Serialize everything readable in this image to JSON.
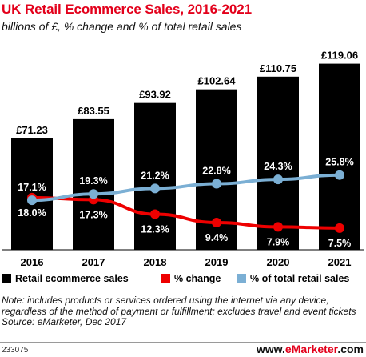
{
  "chart_data": {
    "type": "bar",
    "title": "UK Retail Ecommerce Sales, 2016-2021",
    "subtitle": "billions of £, % change and % of total retail sales",
    "categories": [
      "2016",
      "2017",
      "2018",
      "2019",
      "2020",
      "2021"
    ],
    "series": [
      {
        "name": "Retail ecommerce sales",
        "type": "bar",
        "color": "#000000",
        "values": [
          71.23,
          83.55,
          93.92,
          102.64,
          110.75,
          119.06
        ],
        "labels": [
          "£71.23",
          "£83.55",
          "£93.92",
          "£102.64",
          "£110.75",
          "£119.06"
        ]
      },
      {
        "name": "% change",
        "type": "line",
        "color": "#ee0000",
        "values": [
          18.0,
          17.3,
          12.3,
          9.4,
          7.9,
          7.5
        ],
        "labels": [
          "18.0%",
          "17.3%",
          "12.3%",
          "9.4%",
          "7.9%",
          "7.5%"
        ]
      },
      {
        "name": "% of total retail sales",
        "type": "line",
        "color": "#7bafd4",
        "values": [
          17.1,
          19.3,
          21.2,
          22.8,
          24.3,
          25.8
        ],
        "labels": [
          "17.1%",
          "19.3%",
          "21.2%",
          "22.8%",
          "24.3%",
          "25.8%"
        ]
      }
    ],
    "ylim_bar": [
      0,
      125
    ],
    "ylim_line": [
      0,
      60
    ],
    "grid": false,
    "legend_position": "bottom"
  },
  "legend": {
    "bar": "Retail ecommerce sales",
    "change": "% change",
    "share": "% of total retail sales"
  },
  "note": {
    "text": "Note: includes products or services ordered using the internet via any device, regardless of the method of payment or fulfillment; excludes travel and event tickets",
    "source": "Source: eMarketer, Dec 2017"
  },
  "footer": {
    "chart_id": "233075",
    "brand_prefix": "www.",
    "brand_name": "eMarketer",
    "brand_suffix": ".com"
  }
}
